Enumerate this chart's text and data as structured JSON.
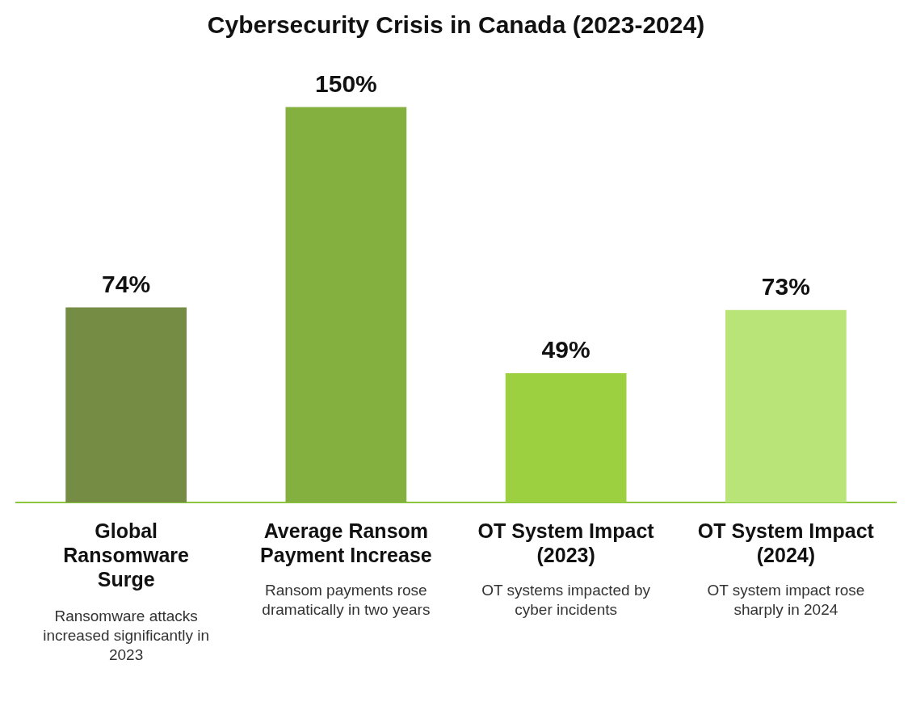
{
  "chart_data": {
    "type": "bar",
    "title": "Cybersecurity Crisis in Canada (2023-2024)",
    "categories": [
      "Global Ransomware Surge",
      "Average Ransom Payment Increase",
      "OT System Impact (2023)",
      "OT System Impact (2024)"
    ],
    "values": [
      74,
      150,
      49,
      73
    ],
    "colors": [
      "#748c44",
      "#84b040",
      "#9cd040",
      "#b8e478"
    ],
    "data_labels": true,
    "value_labels": [
      "74%",
      "150%",
      "49%",
      "73%"
    ],
    "annotations": [
      "Ransomware attacks increased significantly in 2023",
      "Ransom payments rose dramatically in two years",
      "OT systems impacted by cyber incidents",
      "OT system impact rose sharply in 2024"
    ]
  }
}
